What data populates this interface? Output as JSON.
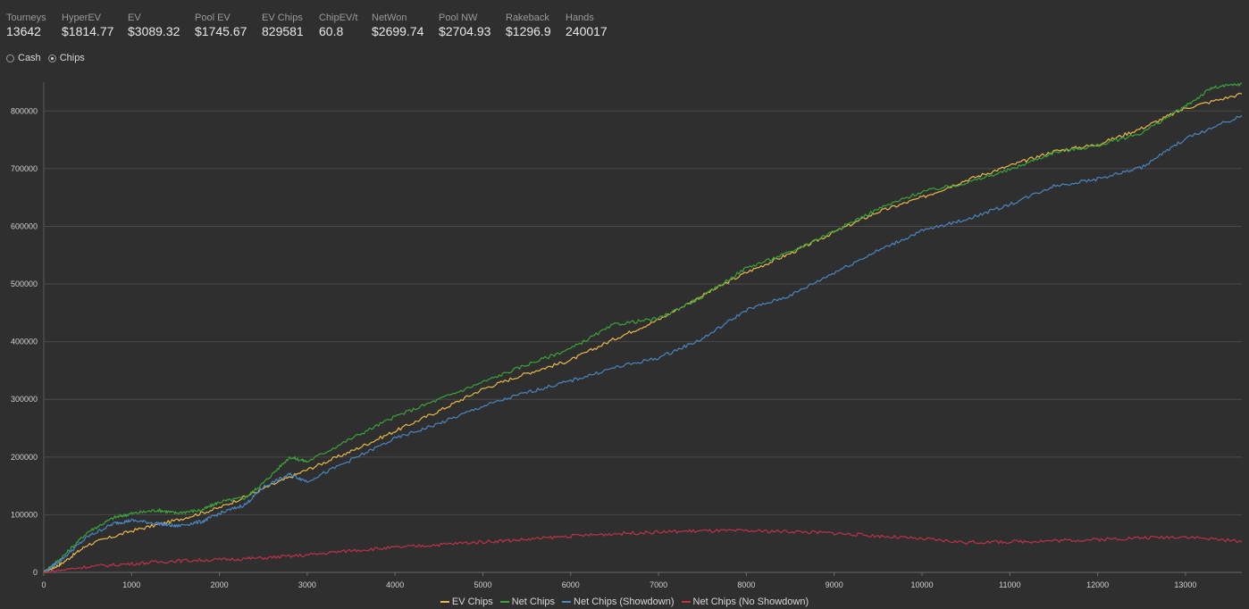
{
  "stats": [
    {
      "label": "Tourneys",
      "value": "13642"
    },
    {
      "label": "HyperEV",
      "value": "$1814.77"
    },
    {
      "label": "EV",
      "value": "$3089.32"
    },
    {
      "label": "Pool EV",
      "value": "$1745.67"
    },
    {
      "label": "EV Chips",
      "value": "829581"
    },
    {
      "label": "ChipEV/t",
      "value": "60.8"
    },
    {
      "label": "NetWon",
      "value": "$2699.74"
    },
    {
      "label": "Pool NW",
      "value": "$2704.93"
    },
    {
      "label": "Rakeback",
      "value": "$1296.9"
    },
    {
      "label": "Hands",
      "value": "240017"
    }
  ],
  "mode": {
    "options": [
      "Cash",
      "Chips"
    ],
    "selected": "Chips"
  },
  "chart_data": {
    "type": "line",
    "xlim": [
      0,
      13642
    ],
    "ylim": [
      0,
      850000
    ],
    "x_ticks": [
      0,
      1000,
      2000,
      3000,
      4000,
      5000,
      6000,
      7000,
      8000,
      9000,
      10000,
      11000,
      12000,
      13000
    ],
    "y_ticks": [
      0,
      100000,
      200000,
      300000,
      400000,
      500000,
      600000,
      700000,
      800000
    ],
    "grid": "horizontal",
    "legend_position": "bottom",
    "series": [
      {
        "name": "EV Chips",
        "color": "#e8b84a",
        "points": [
          [
            0,
            0
          ],
          [
            200,
            15000
          ],
          [
            500,
            48000
          ],
          [
            1000,
            72000
          ],
          [
            1500,
            90000
          ],
          [
            2000,
            112000
          ],
          [
            2500,
            145000
          ],
          [
            3000,
            178000
          ],
          [
            3500,
            210000
          ],
          [
            4000,
            245000
          ],
          [
            4500,
            280000
          ],
          [
            5000,
            318000
          ],
          [
            5500,
            345000
          ],
          [
            6000,
            368000
          ],
          [
            6500,
            405000
          ],
          [
            7000,
            438000
          ],
          [
            7500,
            480000
          ],
          [
            8000,
            520000
          ],
          [
            8500,
            553000
          ],
          [
            9000,
            590000
          ],
          [
            9500,
            625000
          ],
          [
            10000,
            650000
          ],
          [
            10500,
            680000
          ],
          [
            11000,
            705000
          ],
          [
            11500,
            730000
          ],
          [
            12000,
            742000
          ],
          [
            12500,
            770000
          ],
          [
            13000,
            805000
          ],
          [
            13642,
            829581
          ]
        ]
      },
      {
        "name": "Net Chips",
        "color": "#3aa33a",
        "points": [
          [
            0,
            0
          ],
          [
            200,
            25000
          ],
          [
            500,
            70000
          ],
          [
            800,
            95000
          ],
          [
            1000,
            102000
          ],
          [
            1300,
            108000
          ],
          [
            1500,
            103000
          ],
          [
            1800,
            108000
          ],
          [
            2000,
            122000
          ],
          [
            2300,
            130000
          ],
          [
            2500,
            155000
          ],
          [
            2800,
            200000
          ],
          [
            3000,
            192000
          ],
          [
            3500,
            232000
          ],
          [
            4000,
            270000
          ],
          [
            4500,
            300000
          ],
          [
            5000,
            330000
          ],
          [
            5500,
            360000
          ],
          [
            6000,
            388000
          ],
          [
            6500,
            430000
          ],
          [
            7000,
            440000
          ],
          [
            7500,
            478000
          ],
          [
            8000,
            528000
          ],
          [
            8500,
            555000
          ],
          [
            9000,
            592000
          ],
          [
            9500,
            630000
          ],
          [
            10000,
            660000
          ],
          [
            10500,
            675000
          ],
          [
            11000,
            698000
          ],
          [
            11500,
            728000
          ],
          [
            12000,
            740000
          ],
          [
            12500,
            762000
          ],
          [
            13000,
            808000
          ],
          [
            13300,
            840000
          ],
          [
            13642,
            847000
          ]
        ]
      },
      {
        "name": "Net Chips (Showdown)",
        "color": "#4a86c0",
        "points": [
          [
            0,
            0
          ],
          [
            200,
            22000
          ],
          [
            500,
            62000
          ],
          [
            800,
            85000
          ],
          [
            1000,
            90000
          ],
          [
            1300,
            85000
          ],
          [
            1500,
            80000
          ],
          [
            1800,
            88000
          ],
          [
            2000,
            102000
          ],
          [
            2300,
            118000
          ],
          [
            2500,
            148000
          ],
          [
            2800,
            170000
          ],
          [
            3000,
            158000
          ],
          [
            3500,
            195000
          ],
          [
            4000,
            232000
          ],
          [
            4500,
            258000
          ],
          [
            5000,
            288000
          ],
          [
            5500,
            312000
          ],
          [
            6000,
            332000
          ],
          [
            6500,
            355000
          ],
          [
            7000,
            372000
          ],
          [
            7500,
            405000
          ],
          [
            8000,
            455000
          ],
          [
            8500,
            480000
          ],
          [
            9000,
            520000
          ],
          [
            9500,
            558000
          ],
          [
            10000,
            592000
          ],
          [
            10500,
            612000
          ],
          [
            11000,
            638000
          ],
          [
            11500,
            670000
          ],
          [
            12000,
            682000
          ],
          [
            12500,
            702000
          ],
          [
            13000,
            752000
          ],
          [
            13642,
            792000
          ]
        ]
      },
      {
        "name": "Net Chips (No Showdown)",
        "color": "#c0304a",
        "points": [
          [
            0,
            0
          ],
          [
            500,
            10000
          ],
          [
            1000,
            15000
          ],
          [
            1500,
            20000
          ],
          [
            2000,
            22000
          ],
          [
            2500,
            25000
          ],
          [
            3000,
            30000
          ],
          [
            3500,
            38000
          ],
          [
            4000,
            43000
          ],
          [
            4500,
            48000
          ],
          [
            5000,
            53000
          ],
          [
            5500,
            57000
          ],
          [
            6000,
            63000
          ],
          [
            6500,
            67000
          ],
          [
            7000,
            70000
          ],
          [
            7500,
            72000
          ],
          [
            8000,
            72000
          ],
          [
            8500,
            71000
          ],
          [
            9000,
            68000
          ],
          [
            9500,
            63000
          ],
          [
            10000,
            58000
          ],
          [
            10500,
            52000
          ],
          [
            11000,
            53000
          ],
          [
            11500,
            55000
          ],
          [
            12000,
            57000
          ],
          [
            12500,
            60000
          ],
          [
            13000,
            62000
          ],
          [
            13642,
            53000
          ]
        ]
      }
    ]
  }
}
